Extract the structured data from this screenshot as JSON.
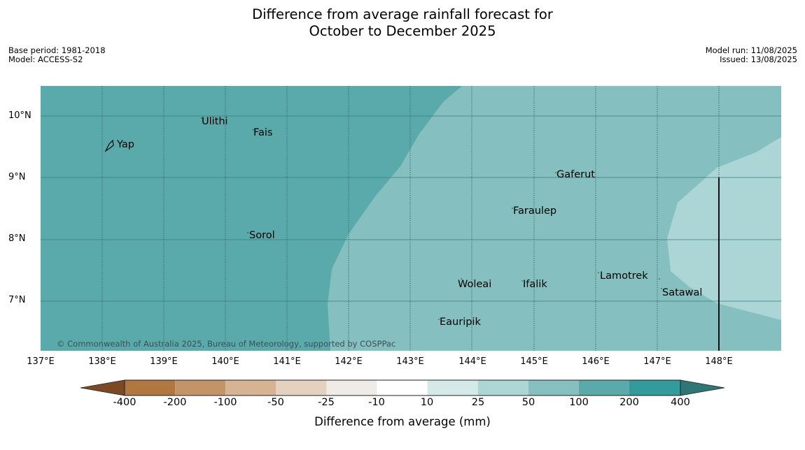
{
  "title": {
    "line1": "Difference from average rainfall forecast for",
    "line2": "October to December 2025"
  },
  "meta_left": {
    "base_period": "Base period: 1981-2018",
    "model": "Model: ACCESS-S2"
  },
  "meta_right": {
    "model_run": "Model run: 11/08/2025",
    "issued": "Issued: 13/08/2025"
  },
  "map": {
    "lat_labels": [
      "10°N",
      "9°N",
      "8°N",
      "7°N"
    ],
    "lon_labels": [
      "137°E",
      "138°E",
      "139°E",
      "140°E",
      "141°E",
      "142°E",
      "143°E",
      "144°E",
      "145°E",
      "146°E",
      "147°E",
      "148°E"
    ],
    "places": [
      {
        "name": "Ulithi",
        "lat": 9.9,
        "lon": 139.7
      },
      {
        "name": "Fais",
        "lat": 9.75,
        "lon": 140.5
      },
      {
        "name": "Yap",
        "lat": 9.5,
        "lon": 138.2
      },
      {
        "name": "Gaferut",
        "lat": 9.1,
        "lon": 145.4
      },
      {
        "name": "Faraulep",
        "lat": 8.6,
        "lon": 144.8
      },
      {
        "name": "Sorol",
        "lat": 8.1,
        "lon": 140.4
      },
      {
        "name": "Lamotrek",
        "lat": 7.45,
        "lon": 146.1
      },
      {
        "name": "Woleai",
        "lat": 7.3,
        "lon": 143.9
      },
      {
        "name": "Ifalik",
        "lat": 7.3,
        "lon": 144.8
      },
      {
        "name": "Satawal",
        "lat": 7.15,
        "lon": 147.1
      },
      {
        "name": "Eauripik",
        "lat": 6.7,
        "lon": 143.5
      }
    ],
    "copyright": "© Commonwealth of Australia 2025, Bureau of Meteorology, supported by COSPPac",
    "colors": {
      "band_100_200": "#5aaaab",
      "band_50_100": "#85bfbf",
      "band_25_50": "#acd5d5"
    }
  },
  "colorbar": {
    "ticks": [
      "-400",
      "-200",
      "-100",
      "-50",
      "-25",
      "-10",
      "10",
      "25",
      "50",
      "100",
      "200",
      "400"
    ],
    "colors": [
      "#7b4a24",
      "#b07840",
      "#c29468",
      "#d5b393",
      "#e4d1c0",
      "#efece7",
      "#ffffff",
      "#d4e9e8",
      "#acd5d5",
      "#85bfbf",
      "#5aaaab",
      "#349b9c",
      "#2f7776"
    ],
    "label": "Difference from average (mm)"
  }
}
